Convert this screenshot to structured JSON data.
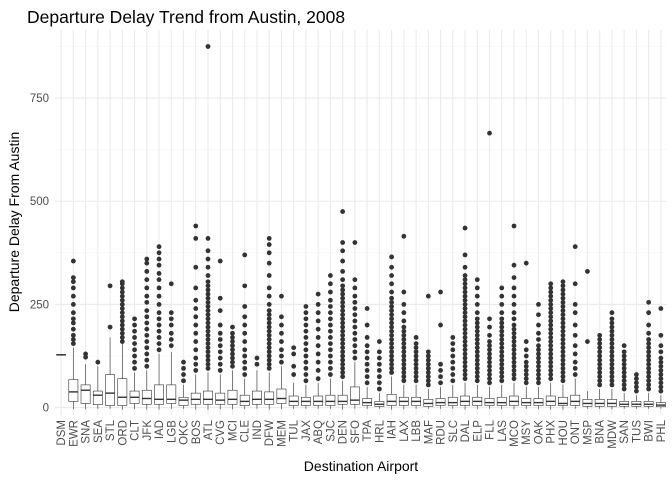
{
  "chart_data": {
    "type": "boxplot",
    "title": "Departure Delay Trend from Austin, 2008",
    "xlabel": "Destination Airport",
    "ylabel": "Departure Delay From Austin",
    "ylim": [
      -18,
      915
    ],
    "yticks": [
      0,
      250,
      500,
      750
    ],
    "grid": true,
    "legend": "none",
    "colors": {
      "panel_bg": "#ffffff",
      "grid_major": "#ebebeb",
      "grid_minor": "#f5f5f5",
      "box_stroke": "#333333",
      "outlier": "#333333"
    },
    "categories": [
      "DSM",
      "EWR",
      "SNA",
      "SEA",
      "STL",
      "ORD",
      "CLT",
      "JFK",
      "IAD",
      "LGB",
      "OKC",
      "BOS",
      "ATL",
      "CVG",
      "MCI",
      "CLE",
      "IND",
      "DFW",
      "MEM",
      "TUL",
      "JAX",
      "ABQ",
      "SJC",
      "DEN",
      "SFO",
      "TPA",
      "HRL",
      "IAH",
      "LAX",
      "LBB",
      "MAF",
      "RDU",
      "SLC",
      "DAL",
      "ELP",
      "FLL",
      "LAS",
      "MCO",
      "MSY",
      "OAK",
      "PHX",
      "HOU",
      "ONT",
      "MSP",
      "BNA",
      "MDW",
      "SAN",
      "TUS",
      "BWI",
      "PHL"
    ],
    "series": [
      {
        "min": 128,
        "q1": 128,
        "median": 128,
        "q3": 128,
        "max": 128,
        "outliers": []
      },
      {
        "min": -4,
        "q1": 15,
        "median": 38,
        "q3": 68,
        "max": 145,
        "outliers": [
          155,
          165,
          175,
          190,
          205,
          215,
          230,
          250,
          270,
          290,
          305,
          315,
          355
        ]
      },
      {
        "min": -4,
        "q1": 10,
        "median": 42,
        "q3": 55,
        "max": 105,
        "outliers": [
          122,
          130
        ]
      },
      {
        "min": -3,
        "q1": 7,
        "median": 30,
        "q3": 40,
        "max": 100,
        "outliers": [
          110
        ]
      },
      {
        "min": -3,
        "q1": 5,
        "median": 35,
        "q3": 80,
        "max": 170,
        "outliers": [
          195,
          295
        ]
      },
      {
        "min": -5,
        "q1": 5,
        "median": 25,
        "q3": 70,
        "max": 155,
        "outliers": [
          160,
          170,
          180,
          190,
          200,
          210,
          220,
          230,
          240,
          250,
          260,
          270,
          280,
          290,
          300,
          305
        ]
      },
      {
        "min": -4,
        "q1": 10,
        "median": 25,
        "q3": 40,
        "max": 85,
        "outliers": [
          95,
          110,
          125,
          140,
          155,
          170,
          185,
          200,
          215
        ]
      },
      {
        "min": -5,
        "q1": 8,
        "median": 22,
        "q3": 42,
        "max": 90,
        "outliers": [
          100,
          115,
          130,
          145,
          160,
          175,
          190,
          205,
          220,
          235,
          255,
          270,
          290,
          310,
          330,
          350,
          360
        ]
      },
      {
        "min": -5,
        "q1": 8,
        "median": 20,
        "q3": 55,
        "max": 130,
        "outliers": [
          140,
          155,
          170,
          185,
          200,
          215,
          230,
          250,
          270,
          290,
          310,
          325,
          345,
          360,
          375,
          390
        ]
      },
      {
        "min": -3,
        "q1": 10,
        "median": 20,
        "q3": 55,
        "max": 135,
        "outliers": [
          150,
          165,
          180,
          200,
          215,
          230,
          300
        ]
      },
      {
        "min": -3,
        "q1": 5,
        "median": 18,
        "q3": 25,
        "max": 55,
        "outliers": [
          65,
          80,
          95,
          110
        ]
      },
      {
        "min": -5,
        "q1": 8,
        "median": 20,
        "q3": 35,
        "max": 80,
        "outliers": [
          90,
          105,
          120,
          140,
          160,
          180,
          200,
          220,
          240,
          260,
          290,
          340,
          410,
          440
        ]
      },
      {
        "min": -5,
        "q1": 8,
        "median": 20,
        "q3": 40,
        "max": 85,
        "outliers": [
          95,
          105,
          115,
          125,
          135,
          145,
          155,
          165,
          175,
          185,
          195,
          205,
          215,
          225,
          235,
          245,
          255,
          265,
          275,
          285,
          295,
          305,
          320,
          340,
          360,
          380,
          410,
          875
        ]
      },
      {
        "min": -4,
        "q1": 8,
        "median": 18,
        "q3": 35,
        "max": 80,
        "outliers": [
          90,
          105,
          120,
          135,
          150,
          165,
          180,
          200,
          235,
          265,
          355
        ]
      },
      {
        "min": -4,
        "q1": 8,
        "median": 20,
        "q3": 42,
        "max": 90,
        "outliers": [
          100,
          110,
          120,
          130,
          140,
          150,
          160,
          170,
          180,
          195
        ]
      },
      {
        "min": -4,
        "q1": 5,
        "median": 15,
        "q3": 30,
        "max": 70,
        "outliers": [
          80,
          95,
          110,
          125,
          140,
          160,
          180,
          200,
          220,
          245,
          295,
          370
        ]
      },
      {
        "min": -3,
        "q1": 8,
        "median": 20,
        "q3": 40,
        "max": 90,
        "outliers": [
          105,
          120
        ]
      },
      {
        "min": -5,
        "q1": 8,
        "median": 20,
        "q3": 38,
        "max": 85,
        "outliers": [
          95,
          105,
          115,
          125,
          135,
          145,
          155,
          165,
          175,
          185,
          195,
          205,
          215,
          225,
          235,
          250,
          270,
          290,
          320,
          350,
          375,
          395,
          410
        ]
      },
      {
        "min": -4,
        "q1": 10,
        "median": 22,
        "q3": 45,
        "max": 100,
        "outliers": [
          110,
          125,
          140,
          160,
          180,
          200,
          220,
          270
        ]
      },
      {
        "min": -3,
        "q1": 5,
        "median": 15,
        "q3": 28,
        "max": 60,
        "outliers": [
          80,
          100,
          130,
          145
        ]
      },
      {
        "min": -3,
        "q1": 5,
        "median": 15,
        "q3": 25,
        "max": 55,
        "outliers": [
          65,
          80,
          95,
          110,
          125,
          140,
          155,
          170,
          185,
          200,
          215,
          230,
          245
        ]
      },
      {
        "min": -3,
        "q1": 5,
        "median": 15,
        "q3": 28,
        "max": 60,
        "outliers": [
          70,
          90,
          110,
          130,
          150,
          170,
          190,
          210,
          230,
          250,
          275
        ]
      },
      {
        "min": -3,
        "q1": 5,
        "median": 15,
        "q3": 30,
        "max": 70,
        "outliers": [
          80,
          95,
          110,
          125,
          140,
          155,
          170,
          185,
          200,
          215,
          230,
          245,
          260,
          280,
          300,
          320
        ]
      },
      {
        "min": -5,
        "q1": 8,
        "median": 15,
        "q3": 30,
        "max": 65,
        "outliers": [
          75,
          85,
          95,
          105,
          115,
          125,
          135,
          145,
          155,
          165,
          175,
          185,
          195,
          205,
          215,
          225,
          235,
          245,
          255,
          265,
          275,
          285,
          295,
          310,
          330,
          355,
          380,
          400,
          475
        ]
      },
      {
        "min": -3,
        "q1": 8,
        "median": 18,
        "q3": 50,
        "max": 110,
        "outliers": [
          120,
          135,
          150,
          165,
          180,
          195,
          210,
          225,
          240,
          255,
          270,
          290,
          310,
          400
        ]
      },
      {
        "min": -3,
        "q1": 5,
        "median": 12,
        "q3": 22,
        "max": 50,
        "outliers": [
          60,
          75,
          90,
          105,
          120,
          135,
          150,
          170,
          200,
          240
        ]
      },
      {
        "min": -3,
        "q1": 3,
        "median": 8,
        "q3": 15,
        "max": 35,
        "outliers": [
          45,
          60,
          75,
          90,
          105,
          120,
          135,
          160
        ]
      },
      {
        "min": -5,
        "q1": 5,
        "median": 15,
        "q3": 32,
        "max": 75,
        "outliers": [
          85,
          95,
          105,
          115,
          125,
          135,
          145,
          155,
          165,
          175,
          185,
          195,
          205,
          215,
          225,
          235,
          245,
          255,
          265,
          280,
          300,
          320,
          340,
          365
        ]
      },
      {
        "min": -4,
        "q1": 5,
        "median": 15,
        "q3": 25,
        "max": 55,
        "outliers": [
          65,
          75,
          85,
          95,
          105,
          115,
          125,
          135,
          145,
          155,
          165,
          175,
          185,
          195,
          210,
          230,
          250,
          280,
          415
        ]
      },
      {
        "min": -3,
        "q1": 5,
        "median": 15,
        "q3": 25,
        "max": 55,
        "outliers": [
          65,
          75,
          85,
          95,
          105,
          115,
          125,
          135,
          145,
          155,
          170
        ]
      },
      {
        "min": -3,
        "q1": 3,
        "median": 10,
        "q3": 20,
        "max": 45,
        "outliers": [
          55,
          65,
          75,
          85,
          95,
          105,
          115,
          125,
          135,
          270
        ]
      },
      {
        "min": -3,
        "q1": 5,
        "median": 12,
        "q3": 22,
        "max": 50,
        "outliers": [
          60,
          75,
          90,
          105,
          200,
          280
        ]
      },
      {
        "min": -3,
        "q1": 5,
        "median": 12,
        "q3": 25,
        "max": 55,
        "outliers": [
          65,
          80,
          95,
          110,
          125,
          140,
          155,
          170
        ]
      },
      {
        "min": -5,
        "q1": 5,
        "median": 15,
        "q3": 28,
        "max": 60,
        "outliers": [
          70,
          80,
          90,
          100,
          110,
          120,
          130,
          140,
          150,
          160,
          170,
          180,
          190,
          200,
          210,
          220,
          230,
          240,
          250,
          260,
          270,
          280,
          290,
          300,
          310,
          320,
          340,
          370,
          435
        ]
      },
      {
        "min": -4,
        "q1": 5,
        "median": 15,
        "q3": 25,
        "max": 55,
        "outliers": [
          65,
          75,
          85,
          95,
          105,
          115,
          125,
          135,
          145,
          155,
          165,
          175,
          185,
          195,
          205,
          215,
          230,
          250,
          270,
          290,
          310
        ]
      },
      {
        "min": -3,
        "q1": 5,
        "median": 12,
        "q3": 22,
        "max": 50,
        "outliers": [
          60,
          70,
          80,
          90,
          100,
          110,
          120,
          130,
          140,
          150,
          160,
          175,
          195,
          215,
          665
        ]
      },
      {
        "min": -4,
        "q1": 5,
        "median": 12,
        "q3": 25,
        "max": 55,
        "outliers": [
          65,
          75,
          85,
          95,
          105,
          115,
          125,
          135,
          145,
          155,
          165,
          175,
          185,
          195,
          205,
          215,
          230,
          250,
          270,
          290
        ]
      },
      {
        "min": -4,
        "q1": 5,
        "median": 15,
        "q3": 28,
        "max": 60,
        "outliers": [
          70,
          80,
          90,
          100,
          110,
          120,
          130,
          140,
          150,
          160,
          170,
          180,
          190,
          200,
          215,
          230,
          250,
          270,
          290,
          315,
          345,
          440
        ]
      },
      {
        "min": -3,
        "q1": 5,
        "median": 12,
        "q3": 22,
        "max": 50,
        "outliers": [
          60,
          70,
          80,
          90,
          100,
          110,
          125,
          140,
          160,
          350
        ]
      },
      {
        "min": -4,
        "q1": 5,
        "median": 12,
        "q3": 22,
        "max": 50,
        "outliers": [
          60,
          70,
          80,
          90,
          100,
          110,
          120,
          130,
          140,
          150,
          165,
          180,
          200,
          225,
          250
        ]
      },
      {
        "min": -5,
        "q1": 5,
        "median": 15,
        "q3": 28,
        "max": 60,
        "outliers": [
          70,
          80,
          90,
          100,
          110,
          120,
          130,
          140,
          150,
          160,
          170,
          180,
          190,
          200,
          210,
          220,
          230,
          240,
          250,
          260,
          270,
          280,
          290,
          300
        ]
      },
      {
        "min": -5,
        "q1": 5,
        "median": 10,
        "q3": 25,
        "max": 55,
        "outliers": [
          65,
          75,
          85,
          95,
          105,
          115,
          125,
          135,
          145,
          155,
          165,
          175,
          185,
          195,
          205,
          215,
          225,
          235,
          245,
          255,
          265,
          275,
          285,
          295,
          305
        ]
      },
      {
        "min": -3,
        "q1": 5,
        "median": 15,
        "q3": 30,
        "max": 70,
        "outliers": [
          80,
          95,
          110,
          130,
          150,
          175,
          200,
          230,
          250,
          300,
          390
        ]
      },
      {
        "min": -3,
        "q1": 3,
        "median": 10,
        "q3": 20,
        "max": 40,
        "outliers": [
          160,
          330
        ]
      },
      {
        "min": -3,
        "q1": 3,
        "median": 10,
        "q3": 20,
        "max": 45,
        "outliers": [
          55,
          65,
          75,
          85,
          95,
          105,
          115,
          125,
          135,
          145,
          155,
          165,
          175
        ]
      },
      {
        "min": -4,
        "q1": 3,
        "median": 10,
        "q3": 20,
        "max": 45,
        "outliers": [
          55,
          65,
          75,
          85,
          95,
          105,
          115,
          125,
          135,
          145,
          155,
          165,
          175,
          185,
          195,
          205,
          215,
          230
        ]
      },
      {
        "min": -3,
        "q1": 3,
        "median": 8,
        "q3": 15,
        "max": 35,
        "outliers": [
          45,
          55,
          65,
          75,
          85,
          95,
          105,
          115,
          125,
          135,
          150
        ]
      },
      {
        "min": -3,
        "q1": 3,
        "median": 8,
        "q3": 15,
        "max": 30,
        "outliers": [
          40,
          50,
          60,
          70,
          80
        ]
      },
      {
        "min": -3,
        "q1": 3,
        "median": 8,
        "q3": 15,
        "max": 35,
        "outliers": [
          45,
          55,
          65,
          75,
          85,
          95,
          105,
          115,
          125,
          135,
          145,
          155,
          165,
          180,
          200,
          230,
          255
        ]
      },
      {
        "min": -3,
        "q1": 2,
        "median": 6,
        "q3": 12,
        "max": 30,
        "outliers": [
          40,
          50,
          60,
          70,
          80,
          90,
          100,
          110,
          120,
          135,
          150,
          175,
          240
        ]
      }
    ]
  }
}
